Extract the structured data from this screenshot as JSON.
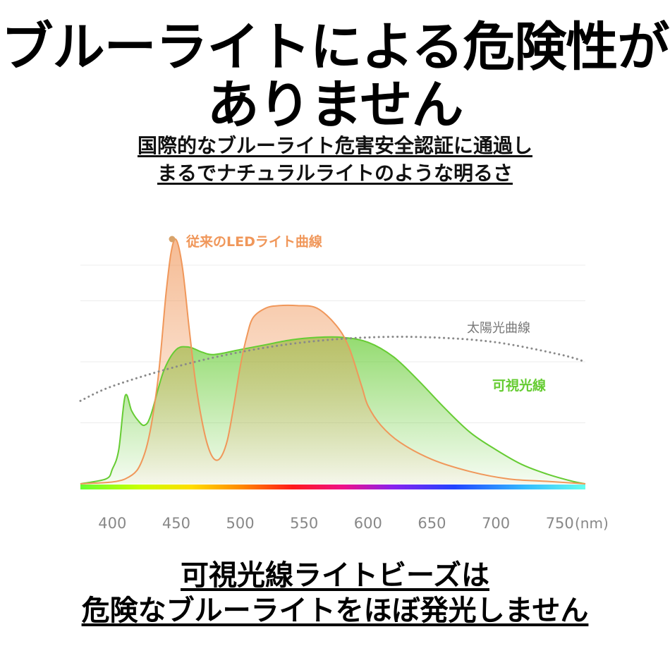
{
  "headline": {
    "line1": "ブルーライトによる危険性が",
    "line2": "ありません"
  },
  "subheadline": {
    "line1": "国際的なブルーライト危害安全認証に通過し",
    "line2": "まるでナチュラルライトのような明るさ"
  },
  "footer": {
    "line1": "可視光線ライトビーズは",
    "line2": "危険なブルーライトをほぼ発光しません"
  },
  "chart_data": {
    "type": "line",
    "title": "",
    "xlabel": "",
    "x_unit": "(nm)",
    "xlim": [
      375,
      770
    ],
    "x_ticks": [
      400,
      450,
      500,
      550,
      600,
      650,
      700,
      750
    ],
    "ylim": [
      0,
      100
    ],
    "grid": true,
    "series": [
      {
        "name": "従来のLEDライト曲線",
        "color": "#f0975a",
        "fill": true,
        "x": [
          375,
          410,
          425,
          435,
          442,
          446,
          450,
          455,
          460,
          465,
          470,
          475,
          480,
          485,
          490,
          495,
          500,
          505,
          510,
          520,
          530,
          545,
          560,
          575,
          585,
          595,
          600,
          610,
          625,
          650,
          680,
          710,
          740,
          770
        ],
        "y": [
          0,
          2,
          12,
          40,
          78,
          95,
          100,
          88,
          64,
          42,
          26,
          15,
          10,
          11,
          18,
          32,
          48,
          60,
          68,
          72,
          73,
          73,
          72,
          65,
          56,
          40,
          32,
          24,
          17,
          10,
          5,
          2,
          1,
          0
        ]
      },
      {
        "name": "可視光線",
        "color": "#66cc33",
        "fill": true,
        "x": [
          375,
          395,
          400,
          405,
          410,
          415,
          420,
          425,
          430,
          440,
          450,
          460,
          470,
          480,
          500,
          520,
          540,
          560,
          580,
          600,
          620,
          640,
          660,
          680,
          700,
          720,
          740,
          760,
          770
        ],
        "y": [
          0,
          2,
          6,
          14,
          36,
          30,
          26,
          24,
          28,
          46,
          55,
          56,
          54,
          53,
          55,
          57,
          59,
          60,
          60,
          58,
          52,
          42,
          31,
          21,
          14,
          8,
          4,
          1,
          0
        ]
      },
      {
        "name": "太陽光曲線",
        "color": "#8a8a8a",
        "dotted": true,
        "x": [
          375,
          400,
          450,
          500,
          550,
          600,
          650,
          700,
          750,
          770
        ],
        "y": [
          34,
          40,
          48,
          54,
          58,
          60,
          60,
          58,
          53,
          50
        ]
      }
    ],
    "legend": {
      "led_label": "従来のLEDライト曲線",
      "sun_label": "太陽光曲線",
      "visible_label": "可視光線",
      "placement": "inline labels"
    },
    "spectrum_bar": true
  }
}
